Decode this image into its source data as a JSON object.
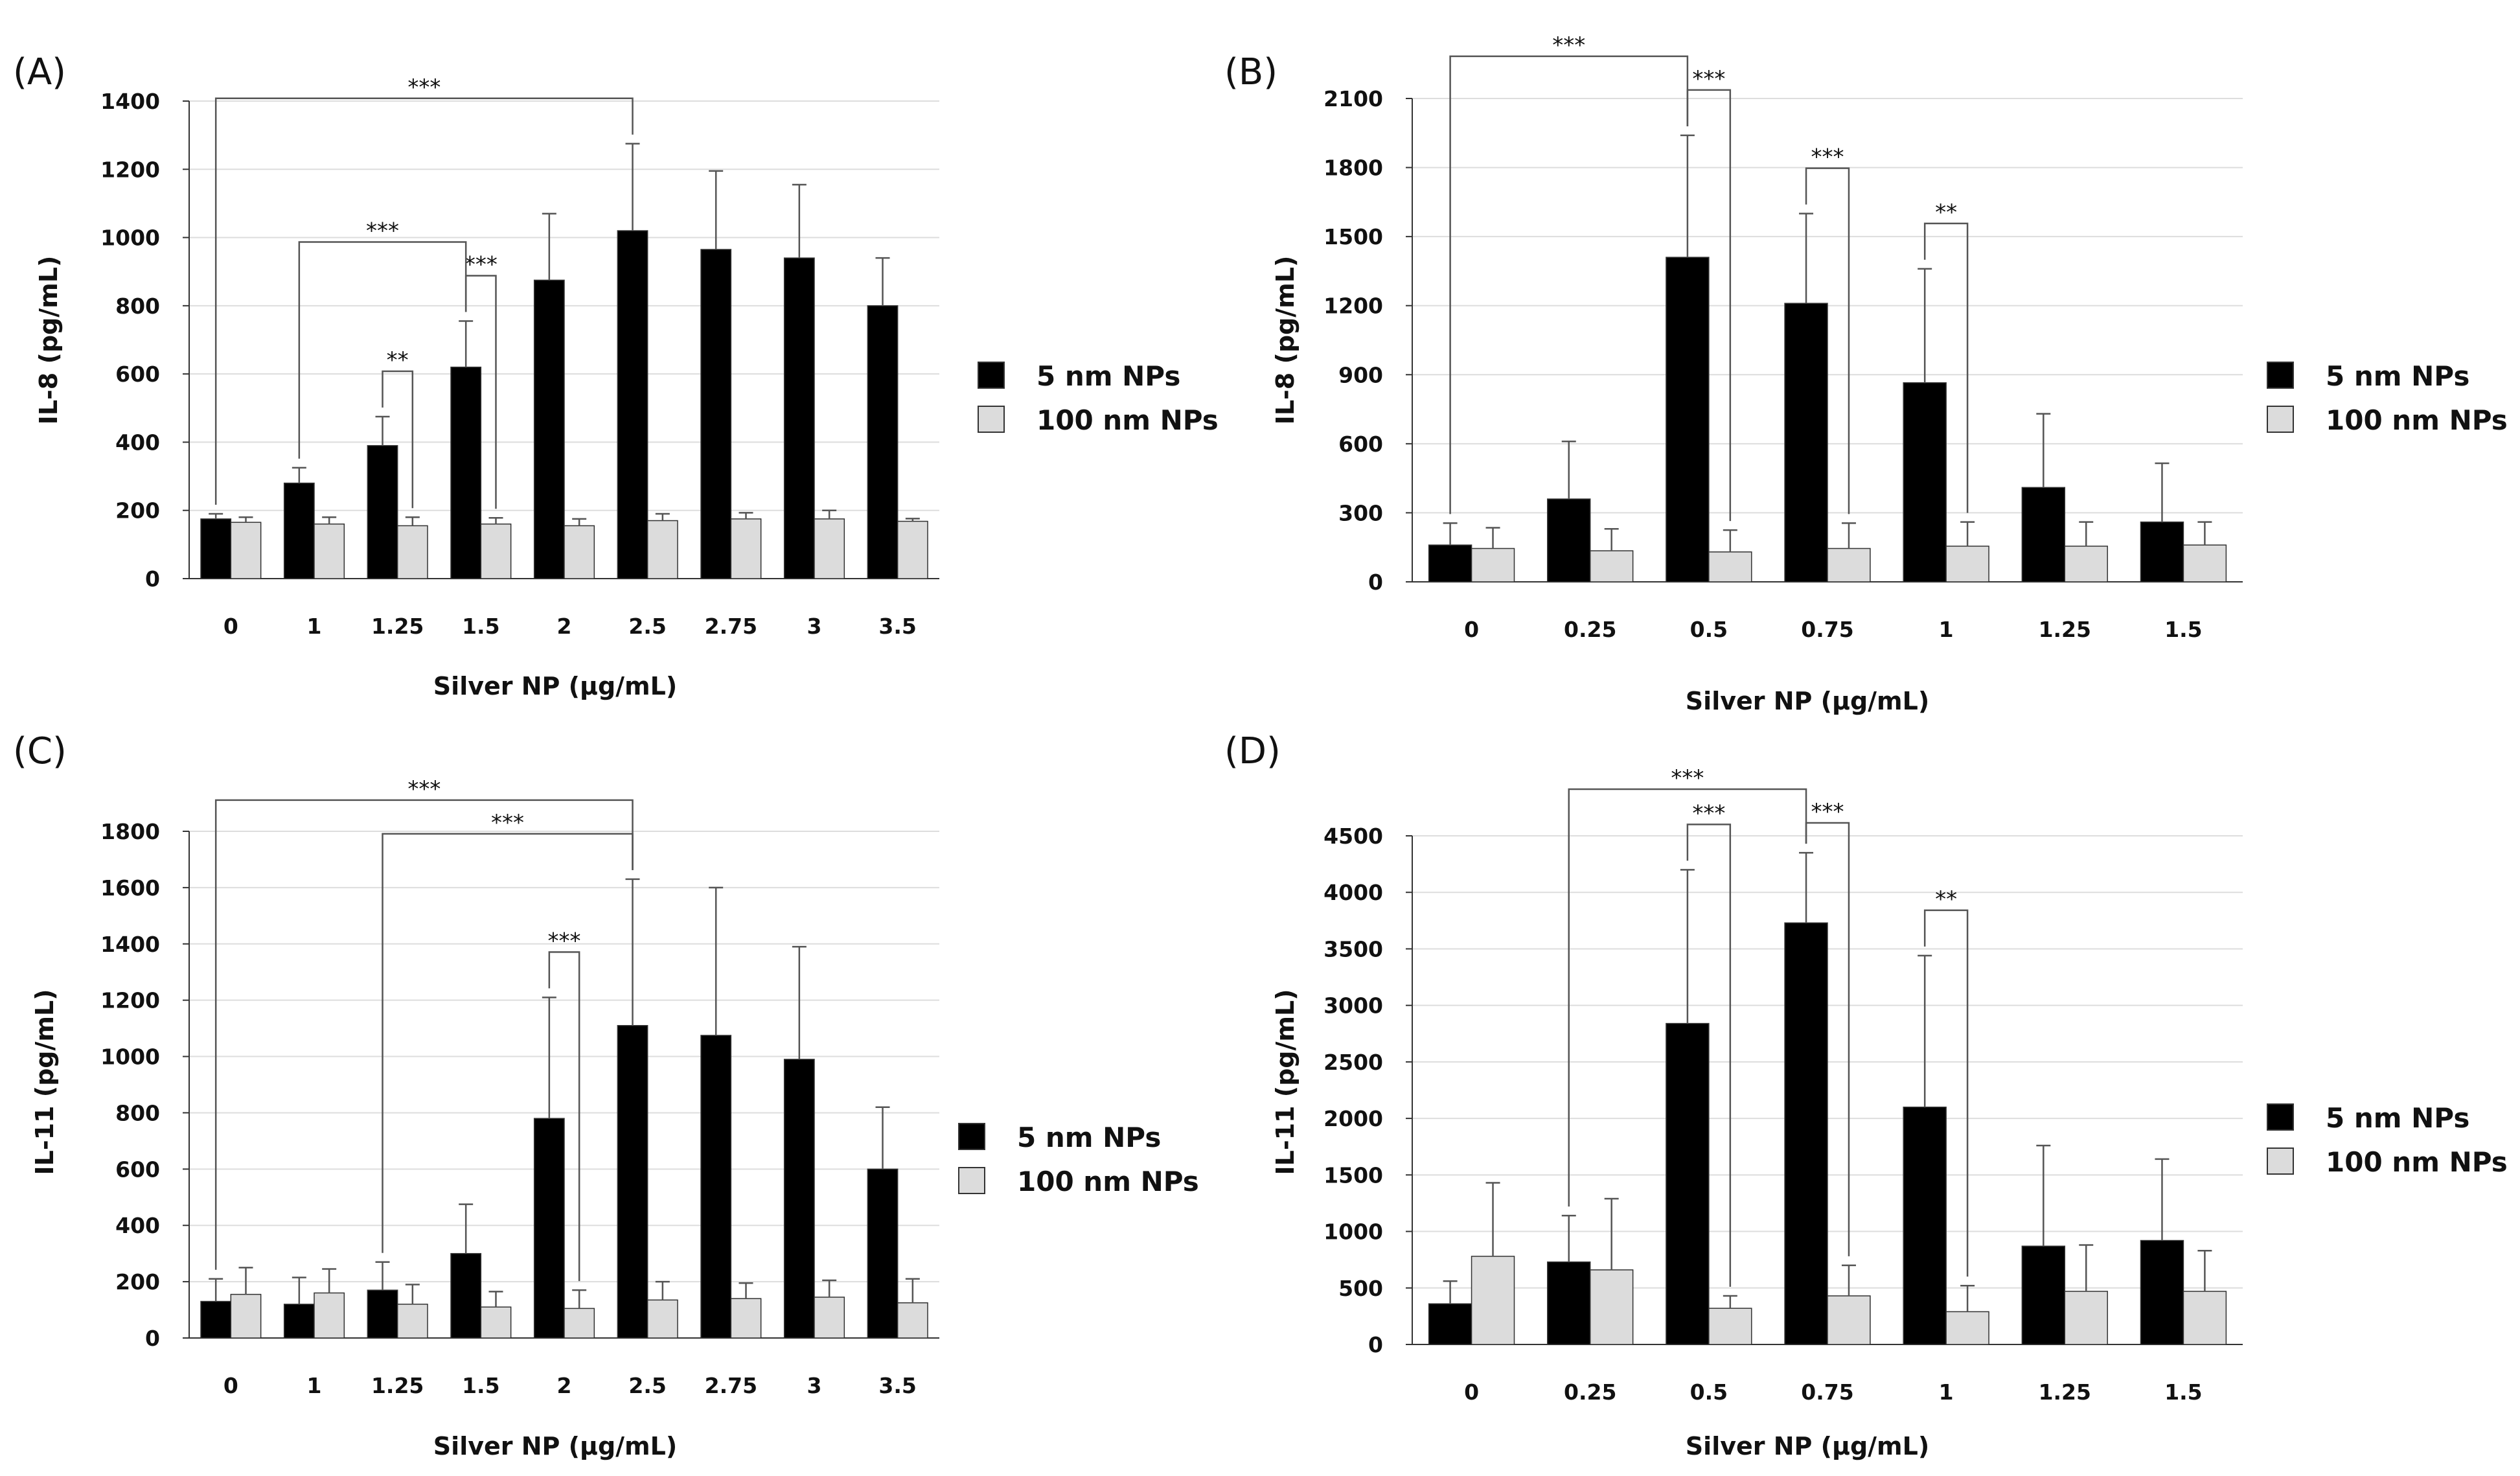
{
  "colors": {
    "series1": "#000000",
    "series2": "#dcdcdc",
    "grid": "#dddddd",
    "axis": "#333333"
  },
  "chart_data": [
    {
      "type": "bar",
      "panel": "(A)",
      "ylabel": "IL-8 (pg/mL)",
      "xlabel": "Silver NP (µg/mL)",
      "ylim": [
        0,
        1400
      ],
      "yticks": [
        0,
        200,
        400,
        600,
        800,
        1000,
        1200,
        1400
      ],
      "categories": [
        "0",
        "1",
        "1.25",
        "1.5",
        "2",
        "2.5",
        "2.75",
        "3",
        "3.5"
      ],
      "series": [
        {
          "name": "5 nm NPs",
          "values": [
            175,
            280,
            390,
            620,
            875,
            1020,
            965,
            940,
            800
          ],
          "errors": [
            15,
            45,
            85,
            135,
            195,
            255,
            230,
            215,
            140
          ]
        },
        {
          "name": "100 nm NPs",
          "values": [
            165,
            160,
            155,
            160,
            155,
            170,
            175,
            175,
            168
          ],
          "errors": [
            15,
            20,
            25,
            18,
            20,
            20,
            18,
            25,
            8
          ]
        }
      ],
      "significance": [
        {
          "from": 0,
          "to": 5,
          "fromSeries": 0,
          "toSeries": 0,
          "label": "***"
        },
        {
          "from": 1,
          "to": 3,
          "fromSeries": 0,
          "toSeries": 0,
          "label": "***"
        },
        {
          "from": 2,
          "to": 2,
          "fromSeries": 0,
          "toSeries": 1,
          "label": "**"
        },
        {
          "from": 3,
          "to": 3,
          "fromSeries": 0,
          "toSeries": 1,
          "label": "***"
        }
      ]
    },
    {
      "type": "bar",
      "panel": "(B)",
      "ylabel": "IL-8 (pg/mL)",
      "xlabel": "Silver NP (µg/mL)",
      "ylim": [
        0,
        2100
      ],
      "yticks": [
        0,
        300,
        600,
        900,
        1200,
        1500,
        1800,
        2100
      ],
      "categories": [
        "0",
        "0.25",
        "0.5",
        "0.75",
        "1",
        "1.25",
        "1.5"
      ],
      "series": [
        {
          "name": "5 nm NPs",
          "values": [
            160,
            360,
            1410,
            1210,
            865,
            410,
            260
          ],
          "errors": [
            95,
            250,
            530,
            390,
            495,
            320,
            255
          ]
        },
        {
          "name": "100 nm NPs",
          "values": [
            145,
            135,
            130,
            145,
            155,
            155,
            160
          ],
          "errors": [
            90,
            95,
            95,
            110,
            105,
            105,
            100
          ]
        }
      ],
      "significance": [
        {
          "from": 0,
          "to": 2,
          "fromSeries": 0,
          "toSeries": 0,
          "label": "***"
        },
        {
          "from": 2,
          "to": 2,
          "fromSeries": 0,
          "toSeries": 1,
          "label": "***"
        },
        {
          "from": 3,
          "to": 3,
          "fromSeries": 0,
          "toSeries": 1,
          "label": "***"
        },
        {
          "from": 4,
          "to": 4,
          "fromSeries": 0,
          "toSeries": 1,
          "label": "**"
        }
      ]
    },
    {
      "type": "bar",
      "panel": "(C)",
      "ylabel": "IL-11 (pg/mL)",
      "xlabel": "Silver NP (µg/mL)",
      "ylim": [
        0,
        1800
      ],
      "yticks": [
        0,
        200,
        400,
        600,
        800,
        1000,
        1200,
        1400,
        1600,
        1800
      ],
      "categories": [
        "0",
        "1",
        "1.25",
        "1.5",
        "2",
        "2.5",
        "2.75",
        "3",
        "3.5"
      ],
      "series": [
        {
          "name": "5 nm NPs",
          "values": [
            130,
            120,
            170,
            300,
            780,
            1110,
            1075,
            990,
            600
          ],
          "errors": [
            80,
            95,
            100,
            175,
            430,
            520,
            525,
            400,
            220
          ]
        },
        {
          "name": "100 nm NPs",
          "values": [
            155,
            160,
            120,
            110,
            105,
            135,
            140,
            145,
            125
          ],
          "errors": [
            95,
            85,
            70,
            55,
            65,
            65,
            55,
            60,
            85
          ]
        }
      ],
      "significance": [
        {
          "from": 0,
          "to": 5,
          "fromSeries": 0,
          "toSeries": 0,
          "label": "***"
        },
        {
          "from": 2,
          "to": 5,
          "fromSeries": 0,
          "toSeries": 0,
          "label": "***"
        },
        {
          "from": 4,
          "to": 4,
          "fromSeries": 0,
          "toSeries": 1,
          "label": "***"
        }
      ]
    },
    {
      "type": "bar",
      "panel": "(D)",
      "ylabel": "IL-11 (pg/mL)",
      "xlabel": "Silver NP (µg/mL)",
      "ylim": [
        0,
        4500
      ],
      "yticks": [
        0,
        500,
        1000,
        1500,
        2000,
        2500,
        3000,
        3500,
        4000,
        4500
      ],
      "categories": [
        "0",
        "0.25",
        "0.5",
        "0.75",
        "1",
        "1.25",
        "1.5"
      ],
      "series": [
        {
          "name": "5 nm NPs",
          "values": [
            360,
            730,
            2840,
            3730,
            2100,
            870,
            920
          ],
          "errors": [
            200,
            410,
            1360,
            620,
            1340,
            890,
            720
          ]
        },
        {
          "name": "100 nm NPs",
          "values": [
            780,
            660,
            320,
            430,
            290,
            470,
            470
          ],
          "errors": [
            650,
            630,
            110,
            270,
            230,
            410,
            360
          ]
        }
      ],
      "significance": [
        {
          "from": 1,
          "to": 3,
          "fromSeries": 0,
          "toSeries": 0,
          "label": "***"
        },
        {
          "from": 2,
          "to": 2,
          "fromSeries": 0,
          "toSeries": 1,
          "label": "***"
        },
        {
          "from": 3,
          "to": 3,
          "fromSeries": 0,
          "toSeries": 1,
          "label": "***"
        },
        {
          "from": 4,
          "to": 4,
          "fromSeries": 0,
          "toSeries": 1,
          "label": "**"
        }
      ]
    }
  ]
}
